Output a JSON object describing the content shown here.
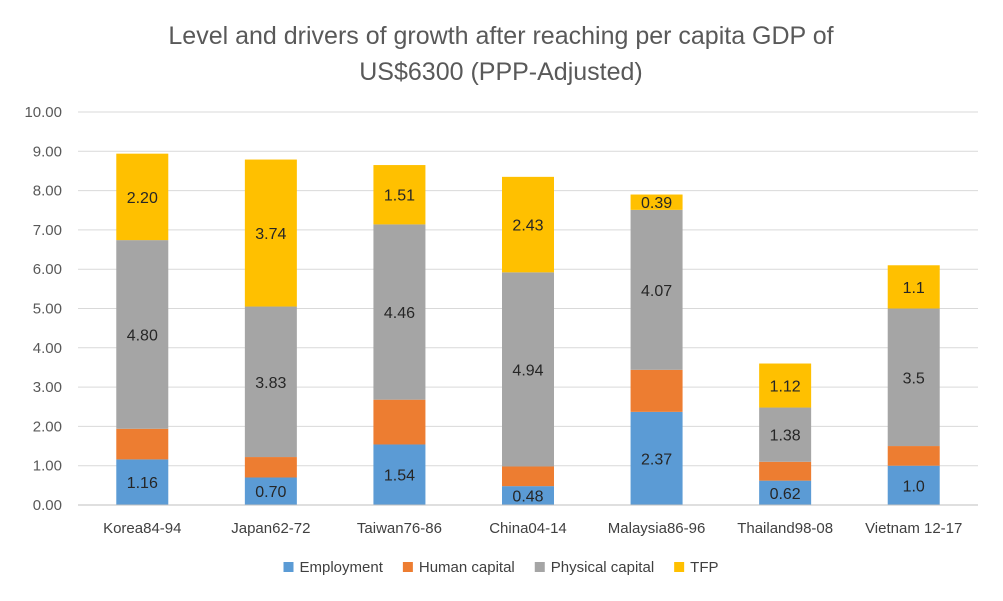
{
  "chart_data": {
    "type": "bar",
    "stacked": true,
    "title": "Level and drivers of growth after reaching per capita GDP of US$6300 (PPP-Adjusted)",
    "title_lines": [
      "Level and drivers of growth after reaching per capita GDP of",
      "US$6300 (PPP-Adjusted)"
    ],
    "xlabel": "",
    "ylabel": "",
    "ylim": [
      0,
      10
    ],
    "yticks": [
      "0.00",
      "1.00",
      "2.00",
      "3.00",
      "4.00",
      "5.00",
      "6.00",
      "7.00",
      "8.00",
      "9.00",
      "10.00"
    ],
    "grid": true,
    "legend_position": "bottom",
    "categories": [
      "Korea84-94",
      "Japan62-72",
      "Taiwan76-86",
      "China04-14",
      "Malaysia86-96",
      "Thailand98-08",
      "Vietnam 12-17"
    ],
    "series": [
      {
        "name": "Employment",
        "color": "#5B9BD5",
        "values": [
          1.16,
          0.7,
          1.54,
          0.48,
          2.37,
          0.62,
          1.0
        ],
        "labels": [
          "1.16",
          "0.70",
          "1.54",
          "0.48",
          "2.37",
          "0.62",
          "1.0"
        ]
      },
      {
        "name": "Human capital",
        "color": "#ED7D31",
        "values": [
          0.78,
          0.52,
          1.14,
          0.5,
          1.07,
          0.48,
          0.5
        ],
        "labels": [
          "",
          "",
          "",
          "",
          "",
          "",
          ""
        ]
      },
      {
        "name": "Physical capital",
        "color": "#A5A5A5",
        "values": [
          4.8,
          3.83,
          4.46,
          4.94,
          4.07,
          1.38,
          3.5
        ],
        "labels": [
          "4.80",
          "3.83",
          "4.46",
          "4.94",
          "4.07",
          "1.38",
          "3.5"
        ]
      },
      {
        "name": "TFP",
        "color": "#FFC000",
        "values": [
          2.2,
          3.74,
          1.51,
          2.43,
          0.39,
          1.12,
          1.1
        ],
        "labels": [
          "2.20",
          "3.74",
          "1.51",
          "2.43",
          "0.39",
          "1.12",
          "1.1"
        ]
      }
    ]
  }
}
